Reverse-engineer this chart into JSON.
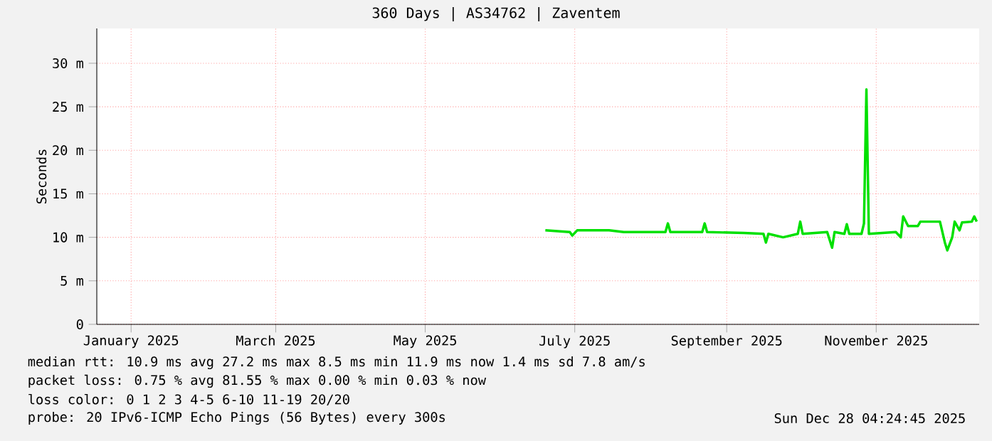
{
  "chart_data": {
    "type": "line",
    "title": "360 Days | AS34762 | Zaventem",
    "ylabel": "Seconds",
    "x": [
      "2025-07-04",
      "2025-07-14",
      "2025-07-15",
      "2025-07-17",
      "2025-07-30",
      "2025-08-05",
      "2025-08-22",
      "2025-08-23",
      "2025-08-24",
      "2025-09-06",
      "2025-09-07",
      "2025-09-08",
      "2025-09-23",
      "2025-10-01",
      "2025-10-02",
      "2025-10-03",
      "2025-10-09",
      "2025-10-15",
      "2025-10-16",
      "2025-10-17",
      "2025-10-27",
      "2025-10-29",
      "2025-10-30",
      "2025-11-03",
      "2025-11-04",
      "2025-11-05",
      "2025-11-10",
      "2025-11-11",
      "2025-11-12",
      "2025-11-13",
      "2025-11-24",
      "2025-11-26",
      "2025-11-27",
      "2025-11-29",
      "2025-12-03",
      "2025-12-04",
      "2025-12-12",
      "2025-12-14",
      "2025-12-15",
      "2025-12-17",
      "2025-12-18",
      "2025-12-20",
      "2025-12-21",
      "2025-12-25",
      "2025-12-26",
      "2025-12-27"
    ],
    "series": [
      {
        "color": "#00e000",
        "values": [
          10.8,
          10.6,
          10.2,
          10.8,
          10.8,
          10.6,
          10.6,
          11.6,
          10.6,
          10.6,
          11.6,
          10.6,
          10.5,
          10.4,
          9.4,
          10.4,
          10.0,
          10.4,
          11.8,
          10.4,
          10.6,
          8.8,
          10.6,
          10.4,
          11.5,
          10.4,
          10.4,
          11.6,
          27.0,
          10.4,
          10.6,
          10.0,
          12.4,
          11.3,
          11.3,
          11.8,
          11.8,
          9.4,
          8.5,
          10.0,
          11.8,
          10.8,
          11.7,
          11.8,
          12.4,
          11.8
        ]
      }
    ],
    "xlim": [
      "2025-01-02",
      "2025-12-28"
    ],
    "xticks": [
      {
        "value": "2025-01-16",
        "label": "January 2025"
      },
      {
        "value": "2025-03-16",
        "label": "March 2025"
      },
      {
        "value": "2025-05-16",
        "label": "May 2025"
      },
      {
        "value": "2025-07-16",
        "label": "July 2025"
      },
      {
        "value": "2025-09-16",
        "label": "September 2025"
      },
      {
        "value": "2025-11-16",
        "label": "November 2025"
      }
    ],
    "ylim": [
      0,
      34
    ],
    "yticks": [
      {
        "value": 0,
        "label": "0"
      },
      {
        "value": 5,
        "label": "5 m"
      },
      {
        "value": 10,
        "label": "10 m"
      },
      {
        "value": 15,
        "label": "15 m"
      },
      {
        "value": 20,
        "label": "20 m"
      },
      {
        "value": 25,
        "label": "25 m"
      },
      {
        "value": 30,
        "label": "30 m"
      }
    ],
    "grid": true,
    "line_style": "solid",
    "marker": "none",
    "annotations": [
      "median rtt:  10.9 ms avg   27.2 ms max   8.5 ms min   11.9 ms now   1.4 ms sd   7.8    am/s",
      "packet loss: 0.75 % avg   81.55 % max   0.00 % min   0.03 % now",
      "loss color:  0  1  2  3  4-5  6-10  11-19  20/20",
      "probe:       20 IPv6-ICMP Echo Pings (56 Bytes) every 300s",
      "Sun Dec 28 04:24:45 2025"
    ]
  }
}
